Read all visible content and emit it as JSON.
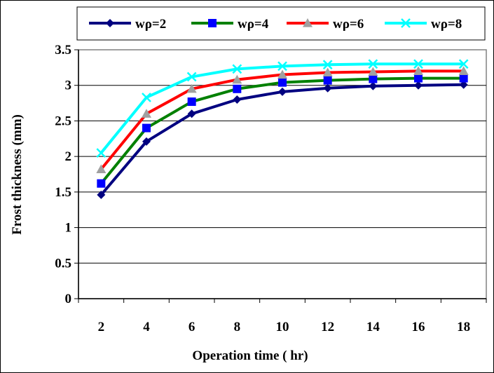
{
  "chart_data": {
    "type": "line",
    "title": "",
    "xlabel": "Operation time ( hr)",
    "ylabel": "Frost thickness (mm)",
    "x": [
      2,
      4,
      6,
      8,
      10,
      12,
      14,
      16,
      18
    ],
    "x_tick_labels": [
      "2",
      "4",
      "6",
      "8",
      "10",
      "12",
      "14",
      "16",
      "18"
    ],
    "y_tick_labels": [
      "0",
      "0.5",
      "1",
      "1.5",
      "2",
      "2.5",
      "3",
      "3.5"
    ],
    "ylim": [
      0,
      3.5
    ],
    "grid": "horizontal",
    "legend_position": "top",
    "series": [
      {
        "name": "wρ=2",
        "color": "#000080",
        "marker": "diamond",
        "values": [
          1.46,
          2.21,
          2.6,
          2.8,
          2.91,
          2.96,
          2.99,
          3.0,
          3.01
        ]
      },
      {
        "name": "wρ=4",
        "color": "#008000",
        "marker_color": "#0000ff",
        "marker": "square",
        "values": [
          1.62,
          2.4,
          2.77,
          2.95,
          3.04,
          3.07,
          3.09,
          3.1,
          3.1
        ]
      },
      {
        "name": "wρ=6",
        "color": "#ff0000",
        "marker_color": "#a0a0a0",
        "marker": "triangle",
        "values": [
          1.82,
          2.6,
          2.95,
          3.08,
          3.15,
          3.18,
          3.19,
          3.2,
          3.2
        ]
      },
      {
        "name": "wρ=8",
        "color": "#00ffff",
        "marker": "x",
        "values": [
          2.05,
          2.83,
          3.12,
          3.23,
          3.27,
          3.29,
          3.3,
          3.3,
          3.3
        ]
      }
    ]
  }
}
